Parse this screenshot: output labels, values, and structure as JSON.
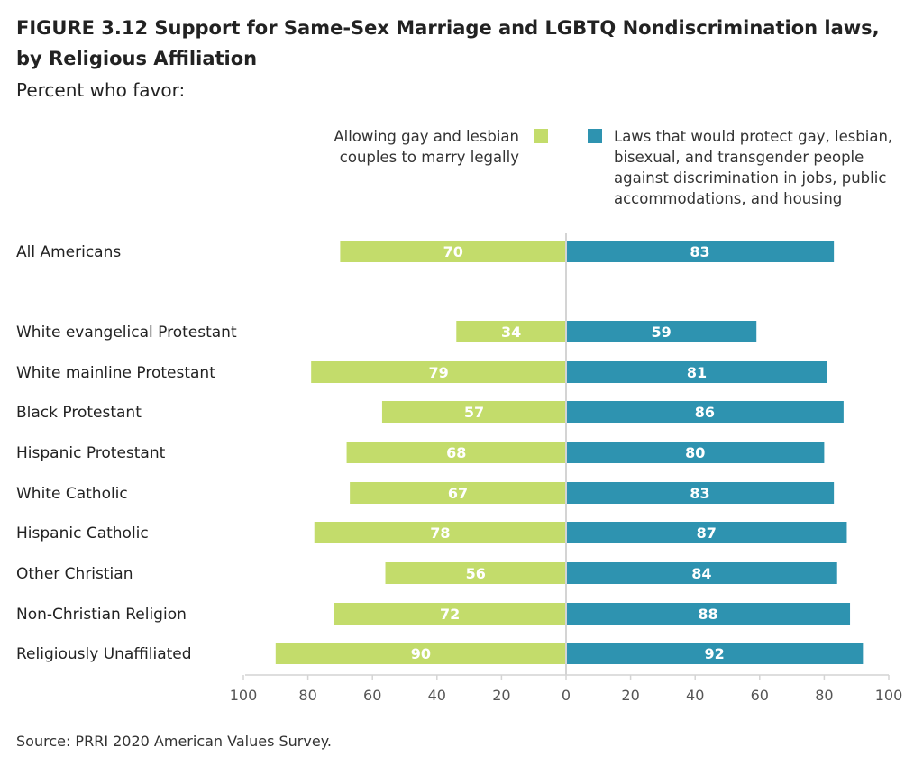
{
  "figure": {
    "title": "FIGURE 3.12  Support for Same-Sex Marriage and LGBTQ Nondiscrimination laws, by Religious Affiliation",
    "subtitle": "Percent who favor:",
    "source": "Source: PRRI 2020 American Values Survey."
  },
  "legend": {
    "left_label": "Allowing gay and lesbian couples to marry legally",
    "right_label": "Laws that would protect gay, lesbian, bisexual, and transgender people against discrimination in jobs, public accommodations, and housing"
  },
  "colors": {
    "marriage": "#c3dc6b",
    "nondiscrimination": "#2e93b0",
    "axis": "#d4d4d4",
    "tick_text": "#555555"
  },
  "chart_data": {
    "type": "bar",
    "orientation": "horizontal-diverging",
    "categories": [
      "All Americans",
      "White evangelical Protestant",
      "White mainline Protestant",
      "Black Protestant",
      "Hispanic Protestant",
      "White Catholic",
      "Hispanic Catholic",
      "Other Christian",
      "Non-Christian Religion",
      "Religiously Unaffiliated"
    ],
    "series": [
      {
        "name": "Allowing gay and lesbian couples to marry legally",
        "side": "left",
        "values": [
          70,
          34,
          79,
          57,
          68,
          67,
          78,
          56,
          72,
          90
        ]
      },
      {
        "name": "Laws that would protect gay, lesbian, bisexual, and transgender people against discrimination in jobs, public accommodations, and housing",
        "side": "right",
        "values": [
          83,
          59,
          81,
          86,
          80,
          83,
          87,
          84,
          88,
          92
        ]
      }
    ],
    "xlim": [
      -100,
      100
    ],
    "xticks": [
      "100",
      "80",
      "60",
      "40",
      "20",
      "0",
      "20",
      "40",
      "60",
      "80",
      "100"
    ],
    "grid": false,
    "legend_position": "top"
  }
}
